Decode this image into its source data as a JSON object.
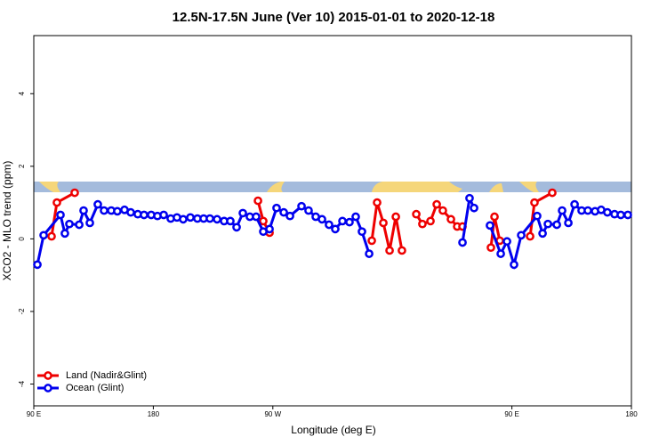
{
  "chart_data": {
    "type": "line",
    "title": "12.5N-17.5N June (Ver 10)   2015-01-01 to 2020-12-18",
    "x_label": "Longitude (deg E)",
    "y_label": "XCO2 - MLO trend (ppm)",
    "xlim": [
      90,
      540
    ],
    "ylim": [
      -4.6,
      5.6
    ],
    "xticks": [
      {
        "value": 90,
        "label": "90 E"
      },
      180,
      {
        "value": 270,
        "label": "90 W"
      },
      {
        "value": 450,
        "label": "90 E"
      },
      {
        "value": 540,
        "label": "180"
      }
    ],
    "yticks": [
      -4,
      -2,
      0,
      2,
      4
    ],
    "legend": "bottom-left",
    "series": [
      {
        "name": "Land (Nadir&Glint)",
        "color": "#ee0000",
        "x": [
          103.4,
          107.4,
          120.8,
          null,
          258.8,
          262.8,
          267.5,
          null,
          344.5,
          348.5,
          353.2,
          357.9,
          362.6,
          367.2,
          null,
          378.0,
          382.6,
          388.7,
          393.4,
          398.0,
          404.1,
          408.8,
          412.8,
          null,
          434.2,
          436.9,
          440.9,
          null,
          463.7,
          467.0,
          480.4
        ],
        "values": [
          0.07,
          1.0,
          1.27,
          null,
          1.05,
          0.49,
          0.17,
          null,
          -0.05,
          1.0,
          0.44,
          -0.32,
          0.61,
          -0.32,
          null,
          0.68,
          0.41,
          0.49,
          0.95,
          0.78,
          0.54,
          0.34,
          0.34,
          null,
          -0.24,
          0.61,
          -0.05,
          null,
          0.07,
          1.0,
          1.27
        ]
      },
      {
        "name": "Ocean (Glint)",
        "color": "#0000ee",
        "x": [
          92.7,
          97.4,
          110.1,
          113.4,
          116.8,
          124.2,
          127.5,
          132.2,
          138.2,
          142.9,
          148.3,
          152.9,
          158.3,
          163.0,
          168.3,
          173.0,
          178.4,
          183.1,
          187.8,
          193.1,
          197.8,
          202.5,
          207.9,
          213.2,
          217.9,
          222.6,
          228.0,
          233.3,
          238.0,
          242.7,
          247.4,
          252.7,
          257.4,
          262.8,
          267.5,
          272.8,
          278.2,
          282.9,
          291.6,
          296.9,
          302.3,
          307.0,
          312.3,
          317.0,
          322.4,
          327.7,
          332.4,
          337.1,
          342.5,
          null,
          412.8,
          418.1,
          421.5,
          null,
          433.5,
          441.6,
          446.3,
          451.6,
          457.0,
          469.0,
          473.1,
          477.1,
          483.8,
          487.8,
          492.5,
          497.2,
          502.5,
          507.2,
          512.6,
          517.2,
          521.9,
          527.3,
          532.0,
          537.3
        ],
        "values": [
          -0.71,
          0.1,
          0.66,
          0.15,
          0.41,
          0.39,
          0.78,
          0.44,
          0.95,
          0.78,
          0.78,
          0.76,
          0.8,
          0.73,
          0.68,
          0.66,
          0.66,
          0.63,
          0.66,
          0.56,
          0.59,
          0.54,
          0.59,
          0.56,
          0.56,
          0.56,
          0.54,
          0.49,
          0.49,
          0.32,
          0.71,
          0.61,
          0.61,
          0.2,
          0.27,
          0.85,
          0.73,
          0.63,
          0.9,
          0.78,
          0.61,
          0.54,
          0.39,
          0.27,
          0.49,
          0.46,
          0.61,
          0.2,
          -0.41,
          null,
          -0.1,
          1.12,
          0.85,
          null,
          0.37,
          -0.41,
          -0.07,
          -0.71,
          0.1,
          0.63,
          0.15,
          0.41,
          0.39,
          0.78,
          0.44,
          0.95,
          0.78,
          0.78,
          0.76,
          0.8,
          0.73,
          0.68,
          0.66,
          0.66
        ]
      }
    ]
  }
}
